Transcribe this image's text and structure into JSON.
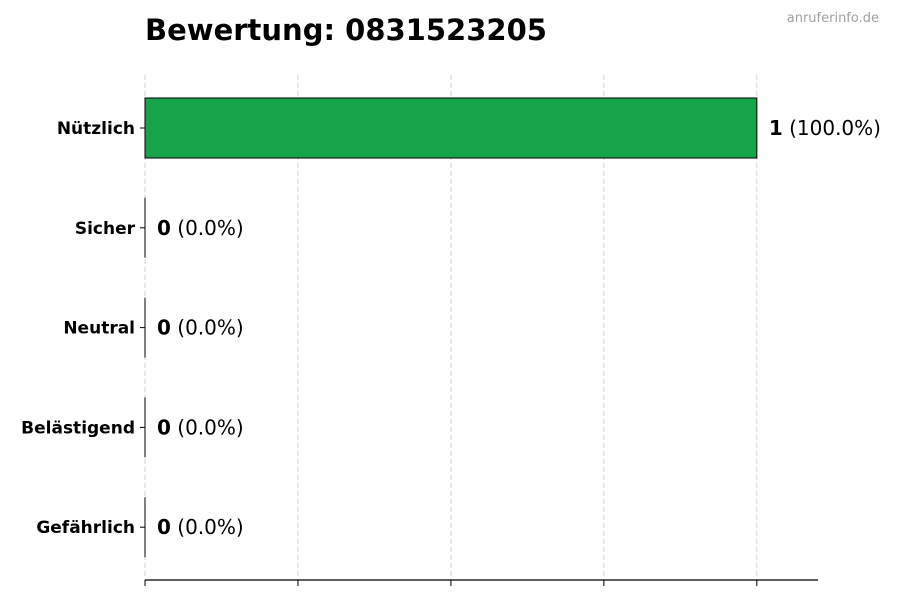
{
  "chart_data": {
    "type": "bar",
    "orientation": "horizontal",
    "title": "Bewertung: 0831523205",
    "watermark": "anruferinfo.de",
    "categories": [
      "Nützlich",
      "Sicher",
      "Neutral",
      "Belästigend",
      "Gefährlich"
    ],
    "values": [
      1,
      0,
      0,
      0,
      0
    ],
    "percent_labels": [
      "(100.0%)",
      "(0.0%)",
      "(0.0%)",
      "(0.0%)",
      "(0.0%)"
    ],
    "xlim": [
      0,
      1.1
    ],
    "x_gridlines": [
      0,
      0.25,
      0.5,
      0.75,
      1
    ],
    "x_tick_labels_shown": false,
    "grid": "vertical dashed",
    "bar_color": "#17a34a",
    "bar_edge_color": "#000000"
  }
}
